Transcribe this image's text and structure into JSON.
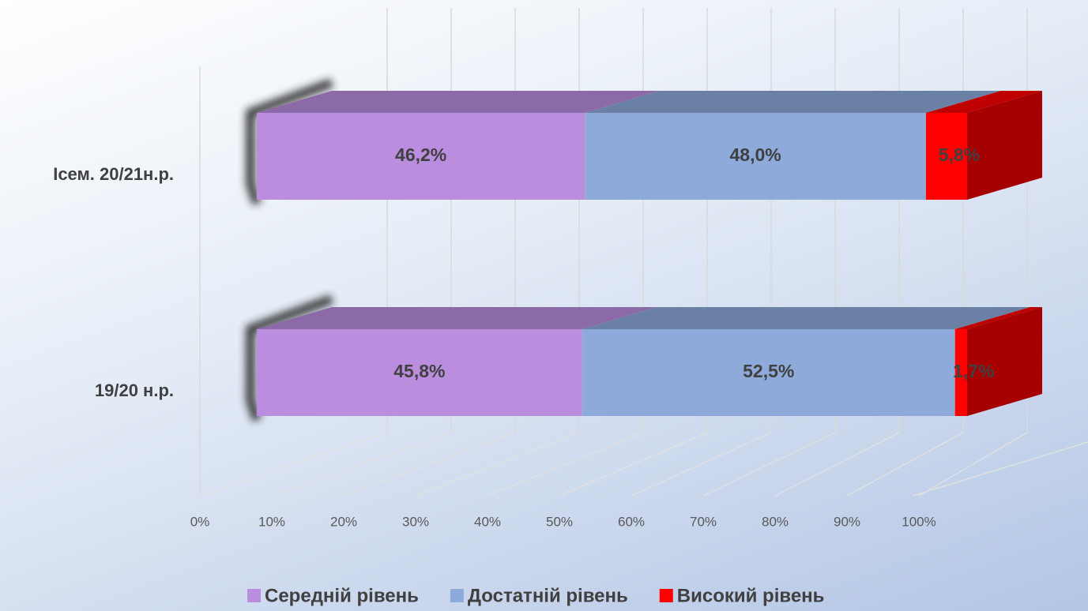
{
  "chart_data": {
    "type": "bar3d_stacked_horizontal",
    "categories": [
      "Ісем. 20/21н.р.",
      "19/20 н.р."
    ],
    "series": [
      {
        "name": "Середній рівень",
        "color": "#bb8ddf",
        "values": [
          46.2,
          45.8
        ],
        "value_labels": [
          "46,2%",
          "45,8%"
        ]
      },
      {
        "name": "Достатній рівень",
        "color": "#8eaadb",
        "values": [
          48.0,
          52.5
        ],
        "value_labels": [
          "48,0%",
          "52,5%"
        ]
      },
      {
        "name": "Високий рівень",
        "color": "#ff0000",
        "values": [
          5.8,
          1.7
        ],
        "value_labels": [
          "5,8%",
          "1,7%"
        ]
      }
    ],
    "xlim": [
      0,
      100
    ],
    "xticks": [
      {
        "value": 0,
        "label": "0%"
      },
      {
        "value": 10,
        "label": "10%"
      },
      {
        "value": 20,
        "label": "20%"
      },
      {
        "value": 30,
        "label": "30%"
      },
      {
        "value": 40,
        "label": "40%"
      },
      {
        "value": 50,
        "label": "50%"
      },
      {
        "value": 60,
        "label": "60%"
      },
      {
        "value": 70,
        "label": "70%"
      },
      {
        "value": 80,
        "label": "80%"
      },
      {
        "value": 90,
        "label": "90%"
      },
      {
        "value": 100,
        "label": "100%"
      }
    ],
    "grid": true,
    "legend": "bottom"
  }
}
